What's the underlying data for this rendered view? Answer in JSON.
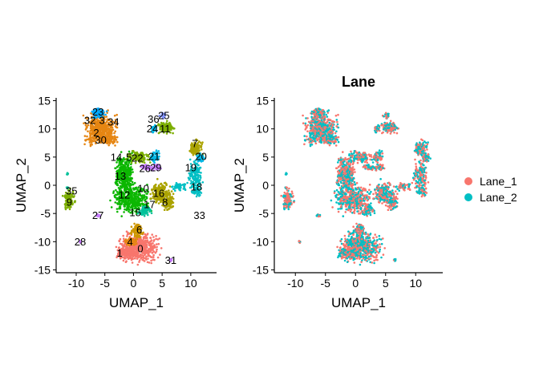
{
  "chart_data": [
    {
      "type": "scatter",
      "title": "",
      "xlabel": "UMAP_1",
      "ylabel": "UMAP_2",
      "xlim": [
        -13.5,
        14.5
      ],
      "ylim": [
        -15.5,
        15.5
      ],
      "xticks": [
        -10,
        -5,
        0,
        5,
        10
      ],
      "yticks": [
        -15,
        -10,
        -5,
        0,
        5,
        10,
        15
      ],
      "grid": false,
      "legend": "none",
      "cluster_labels": [
        {
          "label": "0",
          "x": 1.2,
          "y": -11.2
        },
        {
          "label": "1",
          "x": -2.4,
          "y": -12.0
        },
        {
          "label": "2",
          "x": -6.5,
          "y": 9.3
        },
        {
          "label": "3",
          "x": -5.5,
          "y": 11.5
        },
        {
          "label": "4",
          "x": -0.6,
          "y": -10.0
        },
        {
          "label": "5",
          "x": -0.8,
          "y": 5.0
        },
        {
          "label": "6",
          "x": 1.0,
          "y": -7.9
        },
        {
          "label": "7",
          "x": 10.7,
          "y": 7.4
        },
        {
          "label": "8",
          "x": 5.5,
          "y": -3.0
        },
        {
          "label": "9",
          "x": -11.2,
          "y": -3.0
        },
        {
          "label": "10",
          "x": 1.7,
          "y": -0.6
        },
        {
          "label": "11",
          "x": 5.5,
          "y": 10.0
        },
        {
          "label": "12",
          "x": -1.6,
          "y": -1.7
        },
        {
          "label": "13",
          "x": -2.3,
          "y": 1.6
        },
        {
          "label": "14",
          "x": -3.0,
          "y": 5.0
        },
        {
          "label": "15",
          "x": 0.3,
          "y": -4.8
        },
        {
          "label": "16",
          "x": 4.4,
          "y": -1.4
        },
        {
          "label": "17",
          "x": 2.8,
          "y": -3.4
        },
        {
          "label": "18",
          "x": 11.0,
          "y": -0.3
        },
        {
          "label": "19",
          "x": 10.0,
          "y": 3.1
        },
        {
          "label": "20",
          "x": 11.8,
          "y": 5.1
        },
        {
          "label": "21",
          "x": 3.6,
          "y": 5.1
        },
        {
          "label": "22",
          "x": 0.7,
          "y": 4.8
        },
        {
          "label": "23",
          "x": -6.2,
          "y": 13.0
        },
        {
          "label": "24",
          "x": 3.3,
          "y": 10.0
        },
        {
          "label": "25",
          "x": 5.3,
          "y": 12.4
        },
        {
          "label": "26",
          "x": 2.0,
          "y": 3.0
        },
        {
          "label": "27",
          "x": -6.2,
          "y": -5.3
        },
        {
          "label": "28",
          "x": -9.3,
          "y": -10.0
        },
        {
          "label": "29",
          "x": 3.9,
          "y": 3.1
        },
        {
          "label": "30",
          "x": -5.7,
          "y": 8.0
        },
        {
          "label": "31",
          "x": 6.5,
          "y": -13.3
        },
        {
          "label": "32",
          "x": -7.6,
          "y": 11.5
        },
        {
          "label": "33",
          "x": 11.5,
          "y": -5.3
        },
        {
          "label": "34",
          "x": -3.5,
          "y": 11.2
        },
        {
          "label": "35",
          "x": -10.8,
          "y": -1.0
        },
        {
          "label": "36",
          "x": 3.5,
          "y": 11.7
        }
      ]
    },
    {
      "type": "scatter",
      "title": "Lane",
      "xlabel": "UMAP_1",
      "ylabel": "UMAP_2",
      "xlim": [
        -13.5,
        14.5
      ],
      "ylim": [
        -15.5,
        15.5
      ],
      "xticks": [
        -10,
        -5,
        0,
        5,
        10
      ],
      "yticks": [
        -15,
        -10,
        -5,
        0,
        5,
        10,
        15
      ],
      "grid": false,
      "legend": "right",
      "series": [
        {
          "name": "Lane_1",
          "color": "#F8766D"
        },
        {
          "name": "Lane_2",
          "color": "#00BFC4"
        }
      ]
    }
  ]
}
